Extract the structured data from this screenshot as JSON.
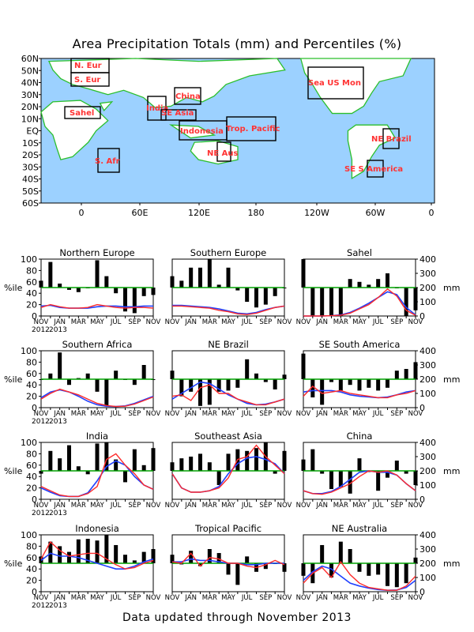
{
  "title": "Area Precipitation Totals (mm) and Percentiles (%)",
  "footer": "Data updated through November 2013",
  "colors": {
    "ocean": "#9cd1ff",
    "land": "#ffffff",
    "coast": "#2bbf2b",
    "region_text": "#ff3333",
    "box": "#000000",
    "bar": "#000000",
    "threshold": "#00a000",
    "observed": "#ff2a2a",
    "normal": "#2040ff"
  },
  "map": {
    "lat_labels": [
      "60N",
      "50N",
      "40N",
      "30N",
      "20N",
      "10N",
      "EQ",
      "10S",
      "20S",
      "30S",
      "40S",
      "50S",
      "60S"
    ],
    "lon_labels": [
      "0",
      "60E",
      "120E",
      "180",
      "120W",
      "60W",
      "0"
    ],
    "regions": [
      {
        "label": "N. Eur"
      },
      {
        "label": "S. Eur"
      },
      {
        "label": "Sahel"
      },
      {
        "label": "S. Afr"
      },
      {
        "label": "India"
      },
      {
        "label": "SE Asia"
      },
      {
        "label": "China"
      },
      {
        "label": "Indonesia"
      },
      {
        "label": "Trop. Pacific"
      },
      {
        "label": "NE Aus"
      },
      {
        "label": "Sea US Mon"
      },
      {
        "label": "NE Brazil"
      },
      {
        "label": "SE S America"
      }
    ]
  },
  "axis_common": {
    "left_ticks": [
      "0",
      "20",
      "40",
      "60",
      "80",
      "100"
    ],
    "right_ticks": [
      "0",
      "100",
      "200",
      "300",
      "400"
    ],
    "left_label": "%ile",
    "right_label": "mm",
    "month_labels": [
      "NOV",
      "JAN",
      "MAR",
      "MAY",
      "JUL",
      "SEP",
      "NOV"
    ],
    "month_ticks_sub": [
      "JAN",
      "MAR",
      "MAY",
      "JUL",
      "SEP"
    ],
    "year_labels": [
      "2012",
      "2013"
    ]
  },
  "chart_data": [
    {
      "type": "bar",
      "title": "Northern Europe",
      "percentiles": [
        62,
        95,
        57,
        46,
        42,
        50,
        98,
        70,
        40,
        8,
        5,
        35,
        37
      ],
      "observed_mm": [
        60,
        80,
        65,
        55,
        55,
        60,
        80,
        70,
        60,
        55,
        60,
        60,
        55
      ],
      "normal_mm": [
        70,
        75,
        60,
        55,
        55,
        55,
        65,
        70,
        70,
        65,
        65,
        70,
        70
      ],
      "ylim": [
        0,
        100
      ],
      "y2lim": [
        0,
        400
      ]
    },
    {
      "type": "bar",
      "title": "Southern Europe",
      "percentiles": [
        70,
        62,
        85,
        85,
        100,
        55,
        85,
        45,
        25,
        15,
        20,
        35,
        50
      ],
      "observed_mm": [
        70,
        70,
        65,
        60,
        55,
        40,
        30,
        15,
        10,
        20,
        40,
        60,
        70
      ],
      "normal_mm": [
        75,
        75,
        70,
        65,
        60,
        50,
        35,
        20,
        15,
        25,
        45,
        60,
        70
      ],
      "ylim": [
        0,
        100
      ],
      "y2lim": [
        0,
        400
      ]
    },
    {
      "type": "bar",
      "title": "Sahel",
      "percentiles": [
        100,
        0,
        0,
        0,
        0,
        65,
        60,
        55,
        65,
        75,
        50,
        0,
        10
      ],
      "observed_mm": [
        0,
        0,
        0,
        2,
        5,
        20,
        50,
        80,
        130,
        190,
        140,
        40,
        5
      ],
      "normal_mm": [
        0,
        0,
        0,
        2,
        8,
        25,
        55,
        90,
        130,
        170,
        150,
        60,
        8
      ],
      "ylim": [
        0,
        100
      ],
      "y2lim": [
        0,
        400
      ]
    },
    {
      "type": "bar",
      "title": "Southern Africa",
      "percentiles": [
        50,
        60,
        97,
        40,
        52,
        60,
        28,
        2,
        65,
        50,
        40,
        75,
        50
      ],
      "observed_mm": [
        60,
        100,
        130,
        110,
        90,
        60,
        30,
        15,
        8,
        10,
        25,
        50,
        75
      ],
      "normal_mm": [
        70,
        110,
        125,
        110,
        80,
        45,
        20,
        10,
        8,
        12,
        30,
        55,
        80
      ],
      "ylim": [
        0,
        100
      ],
      "y2lim": [
        0,
        400
      ]
    },
    {
      "type": "bar",
      "title": "NE Brazil",
      "percentiles": [
        65,
        20,
        28,
        3,
        5,
        28,
        30,
        35,
        85,
        60,
        45,
        32,
        58
      ],
      "observed_mm": [
        80,
        90,
        50,
        140,
        160,
        100,
        100,
        60,
        40,
        20,
        20,
        40,
        60
      ],
      "normal_mm": [
        60,
        100,
        140,
        180,
        170,
        130,
        90,
        60,
        30,
        20,
        25,
        40,
        60
      ],
      "ylim": [
        0,
        100
      ],
      "y2lim": [
        0,
        400
      ]
    },
    {
      "type": "bar",
      "title": "SE South America",
      "percentiles": [
        95,
        18,
        5,
        45,
        30,
        40,
        30,
        35,
        30,
        35,
        65,
        68,
        80
      ],
      "observed_mm": [
        80,
        150,
        100,
        110,
        120,
        100,
        90,
        80,
        70,
        70,
        90,
        100,
        120
      ],
      "normal_mm": [
        110,
        120,
        120,
        120,
        110,
        90,
        80,
        75,
        70,
        75,
        90,
        110,
        120
      ],
      "ylim": [
        0,
        100
      ],
      "y2lim": [
        0,
        400
      ]
    },
    {
      "type": "bar",
      "title": "India",
      "percentiles": [
        45,
        85,
        72,
        95,
        58,
        44,
        98,
        100,
        70,
        30,
        88,
        60,
        90
      ],
      "observed_mm": [
        90,
        60,
        30,
        20,
        20,
        40,
        90,
        280,
        320,
        240,
        180,
        100,
        70
      ],
      "normal_mm": [
        80,
        50,
        25,
        20,
        20,
        45,
        130,
        230,
        270,
        240,
        160,
        100,
        70
      ],
      "ylim": [
        0,
        100
      ],
      "y2lim": [
        0,
        400
      ]
    },
    {
      "type": "bar",
      "title": "Southeast Asia",
      "percentiles": [
        65,
        72,
        75,
        80,
        65,
        25,
        80,
        88,
        85,
        90,
        100,
        45,
        85
      ],
      "observed_mm": [
        180,
        80,
        50,
        50,
        60,
        80,
        150,
        280,
        300,
        380,
        300,
        240,
        180
      ],
      "normal_mm": [
        180,
        80,
        50,
        50,
        60,
        90,
        180,
        250,
        290,
        300,
        280,
        250,
        180
      ],
      "ylim": [
        0,
        100
      ],
      "y2lim": [
        0,
        400
      ]
    },
    {
      "type": "bar",
      "title": "China",
      "percentiles": [
        70,
        88,
        45,
        18,
        22,
        10,
        72,
        48,
        15,
        38,
        68,
        45,
        25
      ],
      "observed_mm": [
        60,
        40,
        35,
        50,
        80,
        110,
        160,
        200,
        190,
        200,
        170,
        110,
        60
      ],
      "normal_mm": [
        60,
        40,
        40,
        55,
        90,
        140,
        190,
        200,
        190,
        190,
        170,
        110,
        60
      ],
      "ylim": [
        0,
        100
      ],
      "y2lim": [
        0,
        400
      ]
    },
    {
      "type": "bar",
      "title": "Indonesia",
      "percentiles": [
        62,
        88,
        80,
        70,
        92,
        93,
        90,
        100,
        82,
        65,
        55,
        70,
        75
      ],
      "observed_mm": [
        230,
        350,
        290,
        250,
        260,
        270,
        270,
        230,
        190,
        160,
        170,
        200,
        220
      ],
      "normal_mm": [
        220,
        270,
        250,
        250,
        240,
        220,
        200,
        180,
        160,
        160,
        180,
        210,
        230
      ],
      "ylim": [
        0,
        100
      ],
      "y2lim": [
        0,
        400
      ]
    },
    {
      "type": "bar",
      "title": "Tropical Pacific",
      "percentiles": [
        65,
        48,
        72,
        45,
        75,
        68,
        30,
        12,
        62,
        35,
        40,
        50,
        35
      ],
      "observed_mm": [
        210,
        200,
        270,
        180,
        240,
        230,
        200,
        200,
        180,
        170,
        190,
        220,
        190
      ],
      "normal_mm": [
        210,
        210,
        230,
        220,
        220,
        210,
        200,
        200,
        190,
        190,
        200,
        200,
        200
      ],
      "ylim": [
        0,
        100
      ],
      "y2lim": [
        0,
        400
      ]
    },
    {
      "type": "bar",
      "title": "NE Australia",
      "percentiles": [
        28,
        15,
        82,
        25,
        88,
        75,
        35,
        28,
        30,
        10,
        8,
        15,
        60
      ],
      "observed_mm": [
        60,
        130,
        170,
        100,
        210,
        120,
        60,
        30,
        20,
        10,
        10,
        40,
        110
      ],
      "normal_mm": [
        80,
        140,
        180,
        160,
        110,
        60,
        40,
        25,
        15,
        10,
        12,
        30,
        80
      ],
      "ylim": [
        0,
        100
      ],
      "y2lim": [
        0,
        400
      ]
    }
  ]
}
